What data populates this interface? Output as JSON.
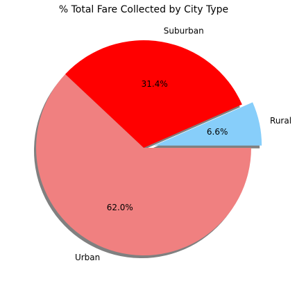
{
  "chart_data": {
    "type": "pie",
    "title": "% Total Fare Collected by City Type",
    "slices": [
      {
        "label": "Rural",
        "value": 6.6,
        "pct_label": "6.6%",
        "color": "#87CEFA",
        "explode": 0.1
      },
      {
        "label": "Suburban",
        "value": 31.4,
        "pct_label": "31.4%",
        "color": "#FF0000",
        "explode": 0
      },
      {
        "label": "Urban",
        "value": 62.0,
        "pct_label": "62.0%",
        "color": "#F08080",
        "explode": 0
      }
    ],
    "start_angle_deg": 0,
    "direction": "counterclockwise",
    "shadow": true,
    "shadow_color": "#808080"
  }
}
